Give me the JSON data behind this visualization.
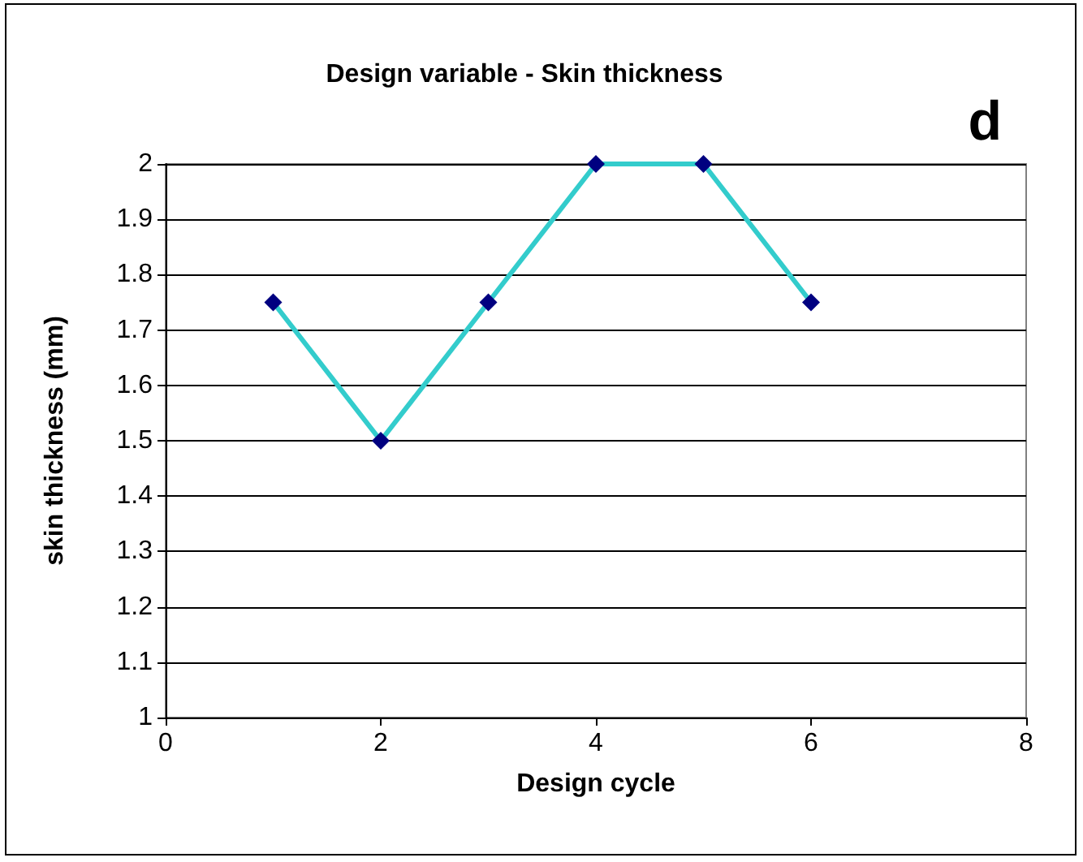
{
  "chart_data": {
    "type": "line",
    "title": "Design variable - Skin thickness",
    "xlabel": "Design cycle",
    "ylabel": "skin thickness (mm)",
    "annotations": [
      "d"
    ],
    "series": [
      {
        "color": "#33cccc",
        "colors": [
          "#000080",
          "#000080",
          "#000080",
          "#000080",
          "#000080",
          "#000080"
        ],
        "x": [
          1,
          2,
          3,
          4,
          5,
          6
        ],
        "values": [
          1.75,
          1.5,
          1.75,
          2,
          2,
          1.75
        ]
      }
    ],
    "xlim": [
      0,
      8
    ],
    "xticks": [
      0,
      2,
      4,
      6,
      8
    ],
    "ylim": [
      1,
      2
    ],
    "yticks": [
      1,
      1.1,
      1.2,
      1.3,
      1.4,
      1.5,
      1.6,
      1.7,
      1.8,
      1.9,
      2
    ],
    "grid": "y",
    "marker": "diamond",
    "line_style": "solid"
  }
}
